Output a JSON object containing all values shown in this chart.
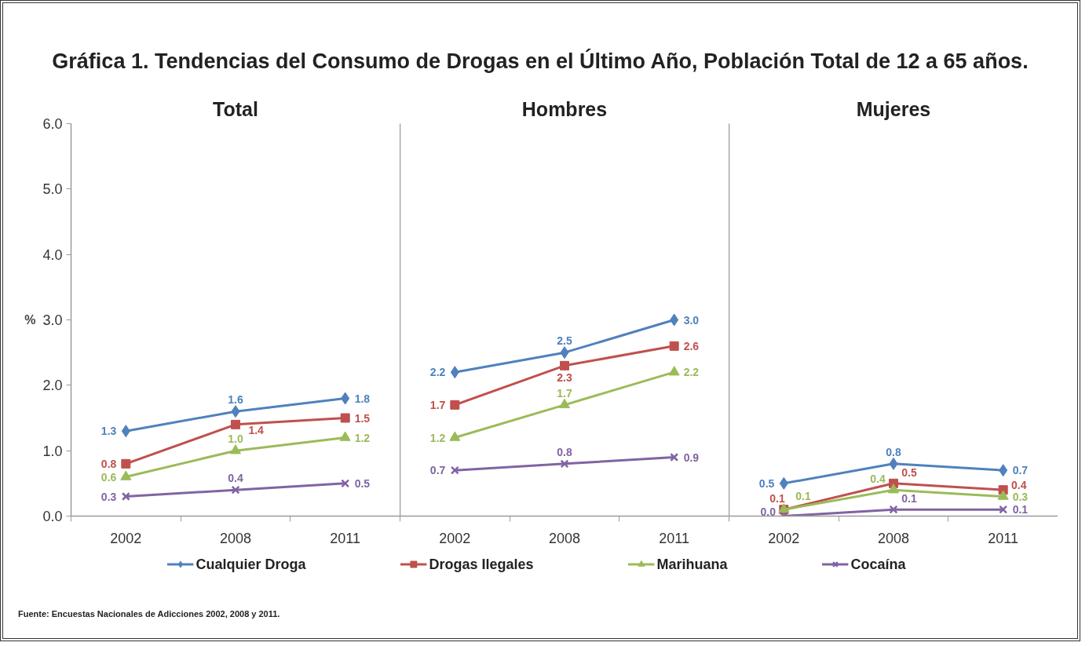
{
  "chart_data": [
    {
      "type": "other",
      "title": "Gráfica 1. Tendencias del Consumo de Drogas en el Último Año, Población Total de 12 a 65 años."
    },
    {
      "type": "line",
      "title": "Total",
      "ylabel": "%",
      "categories": [
        "2002",
        "2008",
        "2011"
      ],
      "ylim": [
        0,
        6
      ],
      "yticks": [
        {
          "value": 0,
          "label": "0.0"
        },
        {
          "value": 1,
          "label": "1.0"
        },
        {
          "value": 2,
          "label": "2.0"
        },
        {
          "value": 3,
          "label": "3.0"
        },
        {
          "value": 4,
          "label": "4.0"
        },
        {
          "value": 5,
          "label": "5.0"
        },
        {
          "value": 6,
          "label": "6.0"
        }
      ],
      "legend": "bottom",
      "series": [
        {
          "name": "Cualquier Droga",
          "color": "#4f81bd",
          "marker": "diamond",
          "values": [
            1.3,
            1.6,
            1.8
          ],
          "value_labels": [
            "1.3",
            "1.6",
            "1.8"
          ]
        },
        {
          "name": "Drogas Ilegales",
          "color": "#c0504d",
          "marker": "square",
          "values": [
            0.8,
            1.4,
            1.5
          ],
          "value_labels": [
            "0.8",
            "1.4",
            "1.5"
          ]
        },
        {
          "name": "Marihuana",
          "color": "#9bbb59",
          "marker": "triangle",
          "values": [
            0.6,
            1.0,
            1.2
          ],
          "value_labels": [
            "0.6",
            "1.0",
            "1.2"
          ]
        },
        {
          "name": "Cocaína",
          "color": "#8064a2",
          "marker": "cross",
          "values": [
            0.3,
            0.4,
            0.5
          ],
          "value_labels": [
            "0.3",
            "0.4",
            "0.5"
          ]
        }
      ]
    },
    {
      "type": "line",
      "title": "Hombres",
      "categories": [
        "2002",
        "2008",
        "2011"
      ],
      "ylim": [
        0,
        6
      ],
      "tick_labels": "x",
      "series": [
        {
          "color": "#4f81bd",
          "marker": "diamond",
          "values": [
            2.2,
            2.5,
            3.0
          ],
          "value_labels": [
            "2.2",
            "2.5",
            "3.0"
          ]
        },
        {
          "color": "#c0504d",
          "marker": "square",
          "values": [
            1.7,
            2.3,
            2.6
          ],
          "value_labels": [
            "1.7",
            "2.3",
            "2.6"
          ]
        },
        {
          "color": "#9bbb59",
          "marker": "triangle",
          "values": [
            1.2,
            1.7,
            2.2
          ],
          "value_labels": [
            "1.2",
            "1.7",
            "2.2"
          ]
        },
        {
          "color": "#8064a2",
          "marker": "cross",
          "values": [
            0.7,
            0.8,
            0.9
          ],
          "value_labels": [
            "0.7",
            "0.8",
            "0.9"
          ]
        }
      ]
    },
    {
      "type": "line",
      "title": "Mujeres",
      "categories": [
        "2002",
        "2008",
        "2011"
      ],
      "ylim": [
        0,
        6
      ],
      "tick_labels": "x",
      "series": [
        {
          "color": "#4f81bd",
          "marker": "diamond",
          "values": [
            0.5,
            0.8,
            0.7
          ],
          "value_labels": [
            "0.5",
            "0.8",
            "0.7"
          ]
        },
        {
          "color": "#c0504d",
          "marker": "square",
          "values": [
            0.1,
            0.5,
            0.4
          ],
          "value_labels": [
            "0.1",
            "0.5",
            "0.4"
          ]
        },
        {
          "color": "#9bbb59",
          "marker": "triangle",
          "values": [
            0.1,
            0.4,
            0.3
          ],
          "value_labels": [
            "0.1",
            "0.4",
            "0.3"
          ]
        },
        {
          "color": "#8064a2",
          "marker": "cross",
          "values": [
            0.0,
            0.1,
            0.1
          ],
          "value_labels": [
            "0.0",
            "0.1",
            "0.1"
          ]
        }
      ]
    },
    {
      "type": "other",
      "annotations": [
        "Fuente: Encuestas Nacionales de Adicciones 2002, 2008 y 2011."
      ]
    }
  ]
}
